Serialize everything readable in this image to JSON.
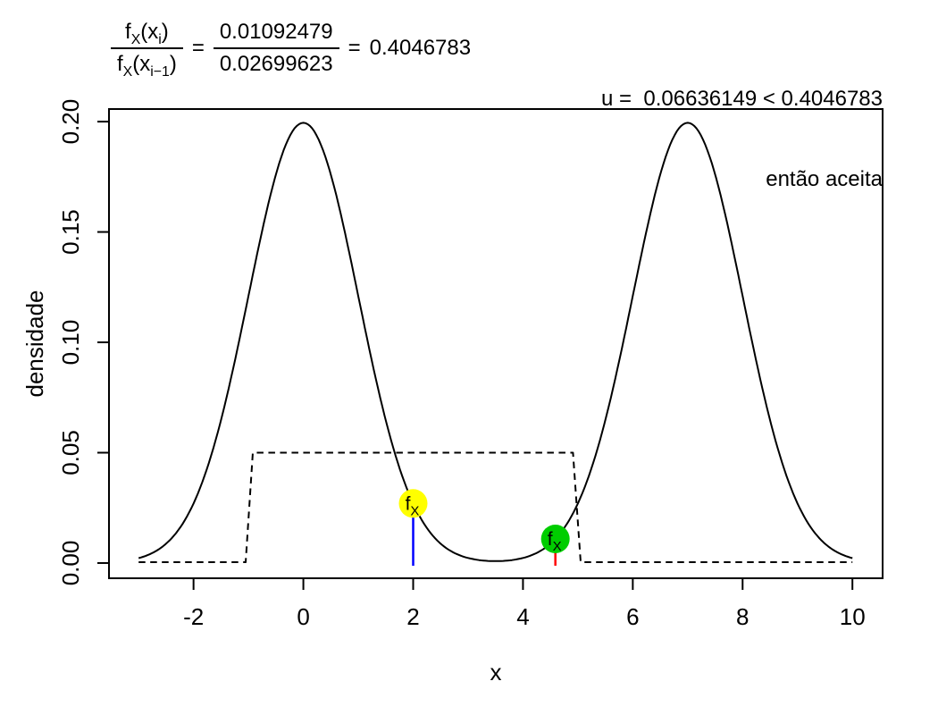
{
  "annotations": {
    "acceptance_ratio": {
      "lhs_num": {
        "f": "f",
        "f_sub": "X",
        "arg_open": "(x",
        "arg_sub": "i",
        "arg_close": ")"
      },
      "lhs_den": {
        "f": "f",
        "f_sub": "X",
        "arg_open": "(x",
        "arg_sub": "i−1",
        "arg_close": ")"
      },
      "equals_1": "=",
      "ratio_numerator": "0.01092479",
      "ratio_denominator": "0.02699623",
      "equals_2": "=",
      "result": "0.4046783"
    },
    "decision": {
      "line1": "u =  0.06636149 < 0.4046783",
      "line2": "então aceita"
    }
  },
  "chart_data": {
    "type": "line",
    "title": "",
    "xlabel": "x",
    "ylabel": "densidade",
    "xlim": [
      -3.54,
      10.55
    ],
    "ylim": [
      -0.0069,
      0.2057
    ],
    "grid": false,
    "legend": "none",
    "x_ticks": [
      "-2",
      "0",
      "2",
      "4",
      "6",
      "8",
      "10"
    ],
    "x_tick_values": [
      -2,
      0,
      2,
      4,
      6,
      8,
      10
    ],
    "y_ticks": [
      "0.00",
      "0.05",
      "0.10",
      "0.15",
      "0.20"
    ],
    "y_tick_values": [
      0,
      0.05,
      0.1,
      0.15,
      0.2
    ],
    "series": [
      {
        "name": "target-density-curve",
        "description": "bimodal target density 0.5*N(0,1) + 0.5*N(7,1), peaks ~0.199 at x=0 and x=7",
        "style": "solid",
        "color": "#000000",
        "mixture": {
          "weights": [
            0.5,
            0.5
          ],
          "means": [
            0,
            7
          ],
          "sds": [
            1,
            1
          ]
        },
        "x_range": [
          -3,
          10
        ]
      },
      {
        "name": "proposal-density-dashed",
        "description": "uniform proposal step function, height 0.05 between -1 and 5",
        "style": "dashed",
        "color": "#000000",
        "x": [
          -3,
          -1.05,
          -0.92,
          4.91,
          5.05,
          10
        ],
        "y": [
          0.0004,
          0.0004,
          0.05,
          0.05,
          0.0004,
          0.0004
        ]
      }
    ],
    "markers": [
      {
        "name": "previous-sample",
        "x": 2,
        "y": 0.02699623,
        "fill": "#ffff00",
        "stem_color": "#0000ff",
        "label_main": "f",
        "label_sub": "X"
      },
      {
        "name": "proposed-sample",
        "x": 4.59,
        "y": 0.01092479,
        "fill": "#00cd00",
        "stem_color": "#ff0000",
        "label_main": "f",
        "label_sub": "X"
      }
    ]
  }
}
